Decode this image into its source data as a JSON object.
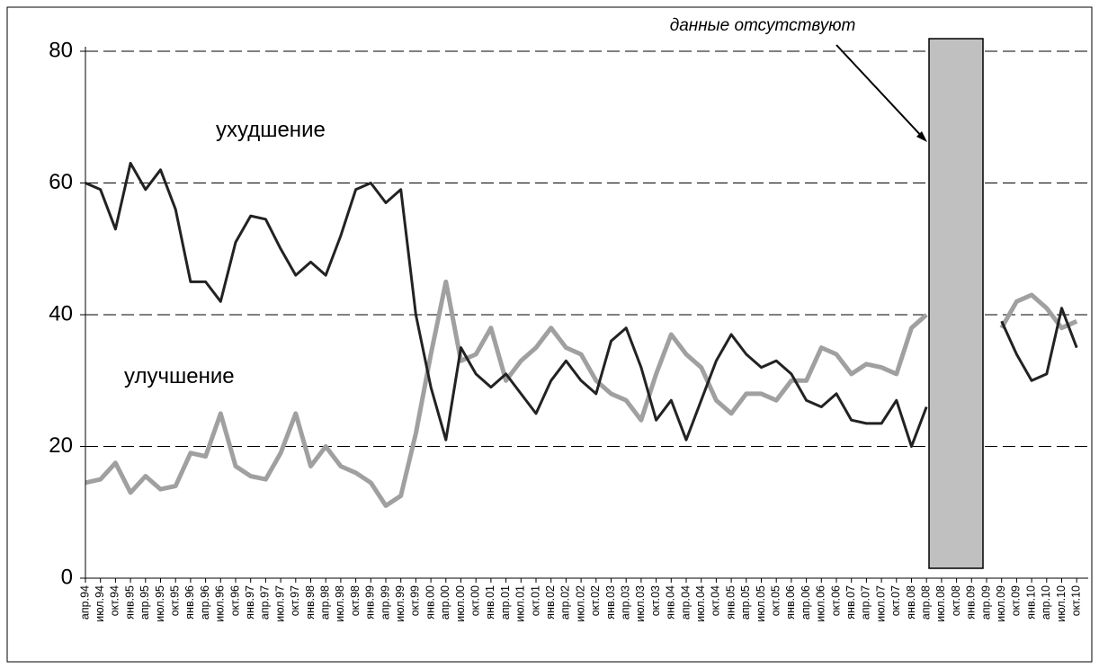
{
  "chart_data": {
    "type": "line",
    "annotation": "данные отсутствуют",
    "categories": [
      "апр.94",
      "июл.94",
      "окт.94",
      "янв.95",
      "апр.95",
      "июл.95",
      "окт.95",
      "янв.96",
      "апр.96",
      "июл.96",
      "окт.96",
      "янв.97",
      "апр.97",
      "июл.97",
      "окт.97",
      "янв.98",
      "апр.98",
      "июл.98",
      "окт.98",
      "янв.99",
      "апр.99",
      "июл.99",
      "окт.99",
      "янв.00",
      "апр.00",
      "июл.00",
      "окт.00",
      "янв.01",
      "апр.01",
      "июл.01",
      "окт.01",
      "янв.02",
      "апр.02",
      "июл.02",
      "окт.02",
      "янв.03",
      "апр.03",
      "июл.03",
      "окт.03",
      "янв.04",
      "апр.04",
      "июл.04",
      "окт.04",
      "янв.05",
      "апр.05",
      "июл.05",
      "окт.05",
      "янв.06",
      "апр.06",
      "июл.06",
      "окт.06",
      "янв.07",
      "апр.07",
      "июл.07",
      "окт.07",
      "янв.08",
      "апр.08",
      "июл.08",
      "окт.08",
      "янв.09",
      "апр.09",
      "июл.09",
      "окт.09",
      "янв.10",
      "апр.10",
      "июл.10",
      "окт.10"
    ],
    "series": [
      {
        "name": "ухудшение",
        "color": "#222222",
        "values": [
          60,
          59,
          53,
          63,
          59,
          62,
          56,
          45,
          45,
          42,
          51,
          55,
          54.5,
          50,
          46,
          48,
          46,
          52,
          59,
          60,
          57,
          59,
          40,
          29,
          21,
          35,
          31,
          29,
          31,
          28,
          25,
          30,
          33,
          30,
          28,
          36,
          38,
          32,
          24,
          27,
          21,
          27,
          33,
          37,
          34,
          32,
          33,
          31,
          27,
          26,
          28,
          24,
          23.5,
          23.5,
          27,
          20,
          26,
          null,
          null,
          null,
          null,
          39,
          34,
          30,
          31,
          41,
          35
        ]
      },
      {
        "name": "улучшение",
        "color": "#a0a0a0",
        "values": [
          14.5,
          15,
          17.5,
          13,
          15.5,
          13.5,
          14,
          19,
          18.5,
          25,
          17,
          15.5,
          15,
          19,
          25,
          17,
          20,
          17,
          16,
          14.5,
          11,
          12.5,
          22,
          34,
          45,
          33,
          34,
          38,
          30,
          33,
          35,
          38,
          35,
          34,
          30,
          28,
          27,
          24,
          31,
          37,
          34,
          32,
          27,
          25,
          28,
          28,
          27,
          30,
          30,
          35,
          34,
          31,
          32.5,
          32,
          31,
          38,
          40,
          null,
          null,
          null,
          null,
          38,
          42,
          43,
          41,
          38,
          39
        ]
      }
    ],
    "ylim": [
      0,
      80
    ],
    "yticks": [
      0,
      20,
      40,
      60,
      80
    ],
    "grid": true
  }
}
